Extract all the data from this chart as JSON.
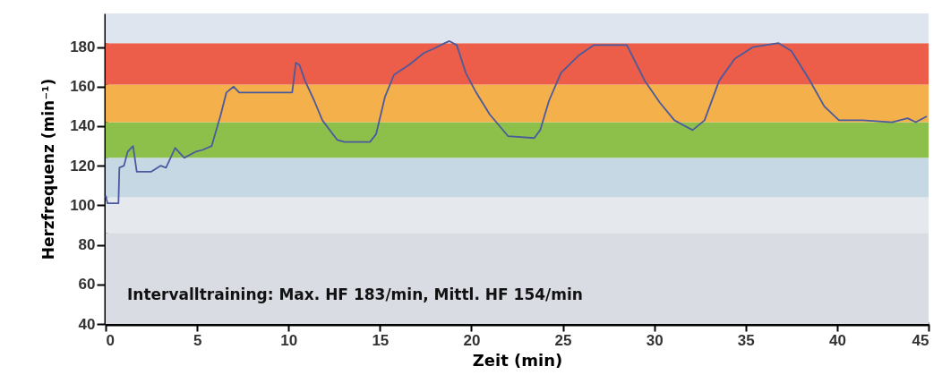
{
  "chart_data": {
    "type": "line",
    "xlabel": "Zeit (min)",
    "ylabel": "Herzfrequenz (min⁻¹)",
    "xlim": [
      0,
      45
    ],
    "ylim": [
      40,
      197
    ],
    "xticks": [
      0,
      5,
      10,
      15,
      20,
      25,
      30,
      35,
      40,
      45
    ],
    "yticks": [
      40,
      60,
      80,
      100,
      120,
      140,
      160,
      180
    ],
    "grid": false,
    "annotations": [
      "Intervalltraining: Max. HF 183/min,  Mittl. HF 154/min"
    ],
    "bands": [
      {
        "axis": "y",
        "from": 40,
        "to": 86,
        "color": "#d9dce3"
      },
      {
        "axis": "y",
        "from": 86,
        "to": 104,
        "color": "#e5e8ec"
      },
      {
        "axis": "y",
        "from": 104,
        "to": 124,
        "color": "#c6d8e4"
      },
      {
        "axis": "y",
        "from": 124,
        "to": 142,
        "color": "#8dc04a"
      },
      {
        "axis": "y",
        "from": 142,
        "to": 161,
        "color": "#f4b04a"
      },
      {
        "axis": "y",
        "from": 161,
        "to": 182,
        "color": "#ec5e49"
      },
      {
        "axis": "y",
        "from": 182,
        "to": 197,
        "color": "#dfe5ee"
      }
    ],
    "x": [
      0,
      0.1,
      0.7,
      0.75,
      1.0,
      1.2,
      1.5,
      1.7,
      2.5,
      3.0,
      3.3,
      3.8,
      4.3,
      4.9,
      5.3,
      5.8,
      6.3,
      6.6,
      7.0,
      7.3,
      10.2,
      10.4,
      10.6,
      10.9,
      11.4,
      11.85,
      12.67,
      13.07,
      14.45,
      14.79,
      15.28,
      15.77,
      16.59,
      17.4,
      17.9,
      18.55,
      18.8,
      19.2,
      19.69,
      20.2,
      21.0,
      22.0,
      23.44,
      23.76,
      24.25,
      24.9,
      25.9,
      26.7,
      27.85,
      28.5,
      29.48,
      30.3,
      31.1,
      32.1,
      32.75,
      33.55,
      34.4,
      35.4,
      36.8,
      37.5,
      38.45,
      39.3,
      40.1,
      41.4,
      43.0,
      43.85,
      44.3,
      44.9
    ],
    "series": [
      {
        "color": "#4b5a9e",
        "values": [
          105,
          101,
          101,
          119,
          120,
          127,
          130,
          117,
          117,
          120,
          119,
          129,
          124,
          127,
          128,
          130,
          146,
          157,
          160,
          157,
          157,
          172,
          171,
          163,
          153,
          143,
          133,
          132,
          132,
          136,
          155,
          166,
          171,
          177,
          179,
          182,
          183,
          181,
          167,
          158,
          146,
          135,
          134,
          138,
          153,
          167,
          176,
          181,
          181,
          181,
          163,
          152,
          143,
          138,
          143,
          163,
          174,
          180,
          182,
          178,
          164,
          150,
          143,
          143,
          142,
          144,
          142,
          145
        ]
      }
    ]
  }
}
